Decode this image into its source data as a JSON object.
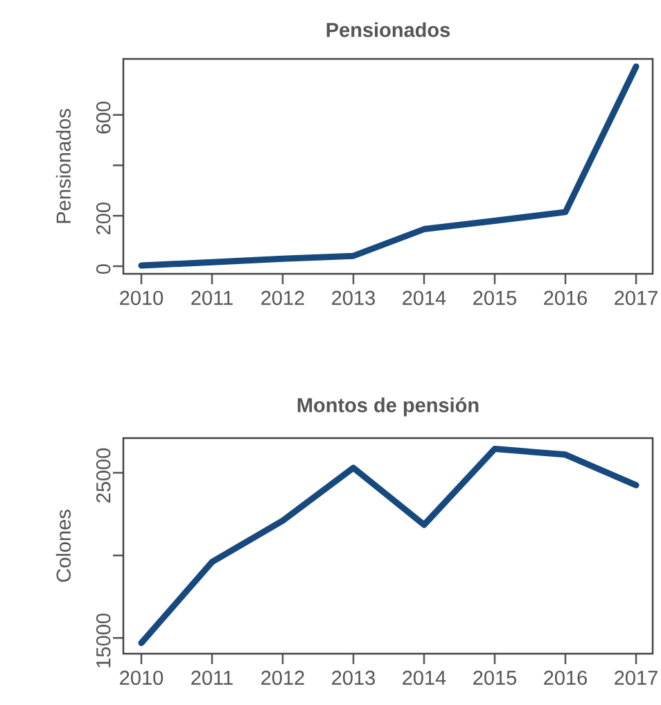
{
  "chart_data": [
    {
      "type": "line",
      "title": "Pensionados",
      "ylabel": "Pensionados",
      "x": [
        2010,
        2011,
        2012,
        2013,
        2014,
        2015,
        2016,
        2017
      ],
      "values": [
        3,
        16,
        30,
        41,
        147,
        180,
        215,
        792
      ],
      "color": "#17497e",
      "line_style": "solid",
      "marker": "none",
      "grid": false,
      "xlim": [
        2009.745,
        2017.235
      ],
      "ylim": [
        -30,
        822
      ],
      "xticks": [
        2010,
        2011,
        2012,
        2013,
        2014,
        2015,
        2016,
        2017
      ],
      "yticks": [
        0,
        200,
        {
          "value": 400,
          "label": null
        },
        600
      ]
    },
    {
      "type": "line",
      "title": "Montos de pensión",
      "ylabel": "Colones",
      "x": [
        2010,
        2011,
        2012,
        2013,
        2014,
        2015,
        2016,
        2017
      ],
      "values": [
        14700,
        19600,
        22100,
        25300,
        21850,
        26450,
        26100,
        24250
      ],
      "color": "#17497e",
      "line_style": "solid",
      "marker": "none",
      "grid": false,
      "xlim": [
        2009.745,
        2017.235
      ],
      "ylim": [
        14050,
        27100
      ],
      "xticks": [
        2010,
        2011,
        2012,
        2013,
        2014,
        2015,
        2016,
        2017
      ],
      "yticks": [
        15000,
        {
          "value": 20000,
          "label": null
        },
        25000
      ]
    }
  ]
}
